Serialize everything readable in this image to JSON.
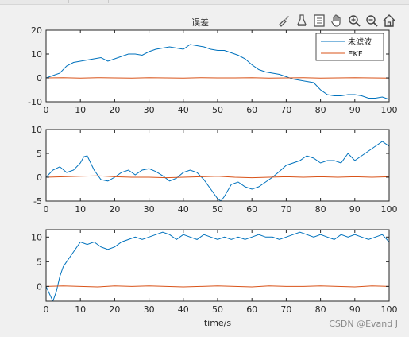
{
  "figure": {
    "watermark": "CSDN @Evand J"
  },
  "toolbar": {
    "items": [
      {
        "name": "brush-icon"
      },
      {
        "name": "legend-icon"
      },
      {
        "name": "datatip-icon"
      },
      {
        "name": "pan-icon"
      },
      {
        "name": "zoom-in-icon"
      },
      {
        "name": "zoom-out-icon"
      },
      {
        "name": "home-icon"
      }
    ]
  },
  "colors": {
    "series_raw": "#0072BD",
    "series_ekf": "#D95319",
    "axes": "#262626",
    "grid_box": "#262626"
  },
  "chart_data": [
    {
      "type": "line",
      "title": "误差",
      "xlabel": "",
      "ylabel": "",
      "xlim": [
        0,
        100
      ],
      "ylim": [
        -10,
        20
      ],
      "xticks": [
        0,
        10,
        20,
        30,
        40,
        50,
        60,
        70,
        80,
        90,
        100
      ],
      "yticks": [
        -10,
        0,
        10,
        20
      ],
      "legend": {
        "placement": "top-right",
        "entries": [
          "未滤波",
          "EKF"
        ]
      },
      "series": [
        {
          "name": "未滤波",
          "color": "#0072BD",
          "x": [
            0,
            2,
            4,
            6,
            8,
            10,
            12,
            14,
            16,
            18,
            20,
            22,
            24,
            26,
            28,
            30,
            32,
            34,
            36,
            38,
            40,
            42,
            44,
            46,
            48,
            50,
            52,
            54,
            56,
            58,
            60,
            62,
            64,
            66,
            68,
            70,
            72,
            74,
            76,
            78,
            80,
            82,
            84,
            86,
            88,
            90,
            92,
            94,
            96,
            98,
            100
          ],
          "y": [
            0,
            1,
            2,
            5,
            6.5,
            7,
            7.5,
            8,
            8.5,
            7,
            8,
            9,
            10,
            10,
            9.5,
            11,
            12,
            12.5,
            13,
            12.5,
            12,
            14,
            13.5,
            13,
            12,
            11.5,
            11.5,
            10.5,
            9.5,
            8,
            5.5,
            3.5,
            2.5,
            2,
            1.5,
            0.5,
            -0.5,
            -1,
            -1.5,
            -2,
            -5,
            -7,
            -7.5,
            -7.5,
            -7,
            -7,
            -7.5,
            -8.5,
            -8.5,
            -8,
            -9
          ]
        },
        {
          "name": "EKF",
          "color": "#D95319",
          "x": [
            0,
            5,
            10,
            15,
            20,
            25,
            30,
            35,
            40,
            45,
            50,
            55,
            60,
            65,
            70,
            75,
            80,
            85,
            90,
            95,
            100
          ],
          "y": [
            0,
            0.1,
            -0.1,
            0.1,
            0,
            -0.1,
            0.1,
            0,
            -0.1,
            0.1,
            0,
            0,
            0.1,
            -0.1,
            0,
            0.1,
            -0.1,
            0,
            0.1,
            0,
            -0.1
          ]
        }
      ]
    },
    {
      "type": "line",
      "title": "",
      "xlabel": "",
      "ylabel": "",
      "xlim": [
        0,
        100
      ],
      "ylim": [
        -5,
        10
      ],
      "xticks": [
        0,
        10,
        20,
        30,
        40,
        50,
        60,
        70,
        80,
        90,
        100
      ],
      "yticks": [
        -5,
        0,
        5,
        10
      ],
      "series": [
        {
          "name": "",
          "color": "#0072BD",
          "x": [
            0,
            2,
            4,
            6,
            8,
            10,
            11,
            12,
            14,
            16,
            18,
            20,
            22,
            24,
            26,
            28,
            30,
            32,
            34,
            36,
            38,
            40,
            42,
            44,
            46,
            48,
            50,
            51,
            52,
            54,
            56,
            58,
            60,
            62,
            64,
            66,
            68,
            70,
            72,
            74,
            76,
            78,
            80,
            82,
            84,
            86,
            88,
            90,
            92,
            94,
            96,
            98,
            100
          ],
          "y": [
            0,
            1.5,
            2.2,
            1,
            1.5,
            3,
            4.3,
            4.5,
            1.5,
            -0.5,
            -0.8,
            0,
            1,
            1.5,
            0.5,
            1.5,
            1.8,
            1.2,
            0.3,
            -0.8,
            -0.2,
            1,
            1.5,
            1,
            -0.5,
            -2.5,
            -4.5,
            -5,
            -4,
            -1.5,
            -1,
            -2,
            -2.5,
            -2,
            -1,
            0,
            1.2,
            2.5,
            3,
            3.5,
            4.5,
            4,
            3,
            3.5,
            3.5,
            3,
            5,
            3.5,
            4.5,
            5.5,
            6.5,
            7.5,
            6.5
          ]
        },
        {
          "name": "",
          "color": "#D95319",
          "x": [
            0,
            5,
            10,
            15,
            20,
            25,
            30,
            35,
            40,
            45,
            50,
            55,
            60,
            65,
            70,
            75,
            80,
            85,
            90,
            95,
            100
          ],
          "y": [
            0,
            0.1,
            0.2,
            0.3,
            0.1,
            0,
            0,
            -0.1,
            0,
            0.1,
            0.2,
            0,
            -0.1,
            0,
            0.1,
            0,
            0.1,
            0,
            0.1,
            0,
            0.1
          ]
        }
      ]
    },
    {
      "type": "line",
      "title": "",
      "xlabel": "time/s",
      "ylabel": "",
      "xlim": [
        0,
        100
      ],
      "ylim": [
        -3,
        11.5
      ],
      "xticks": [
        0,
        10,
        20,
        30,
        40,
        50,
        60,
        70,
        80,
        90,
        100
      ],
      "yticks": [
        0,
        5,
        10
      ],
      "series": [
        {
          "name": "",
          "color": "#0072BD",
          "x": [
            0,
            1,
            2,
            3,
            4,
            5,
            6,
            8,
            10,
            12,
            14,
            16,
            18,
            20,
            22,
            24,
            26,
            28,
            30,
            32,
            34,
            36,
            38,
            40,
            42,
            44,
            46,
            48,
            50,
            52,
            54,
            56,
            58,
            60,
            62,
            64,
            66,
            68,
            70,
            72,
            74,
            76,
            78,
            80,
            82,
            84,
            86,
            88,
            90,
            92,
            94,
            96,
            98,
            100
          ],
          "y": [
            0,
            -1.5,
            -3,
            -1,
            2,
            4,
            5,
            7,
            9,
            8.5,
            9,
            8,
            7.5,
            8,
            9,
            9.5,
            10,
            9.5,
            10,
            10.5,
            11,
            10.5,
            9.5,
            10.5,
            10,
            9.5,
            10.5,
            10,
            9.5,
            10,
            9.5,
            10,
            9.5,
            10,
            10.5,
            10,
            10,
            9.5,
            10,
            10.5,
            11,
            10.5,
            10,
            10.5,
            10,
            9.5,
            10.5,
            10,
            10.5,
            10,
            9.5,
            10,
            10.5,
            9
          ]
        },
        {
          "name": "",
          "color": "#D95319",
          "x": [
            0,
            5,
            10,
            15,
            20,
            25,
            30,
            35,
            40,
            45,
            50,
            55,
            60,
            65,
            70,
            75,
            80,
            85,
            90,
            95,
            100
          ],
          "y": [
            0,
            0.1,
            0,
            -0.1,
            0.1,
            0,
            0.1,
            0,
            -0.1,
            0,
            0.1,
            0,
            -0.1,
            0.1,
            0,
            0,
            0.1,
            0,
            -0.1,
            0.1,
            0
          ]
        }
      ]
    }
  ]
}
